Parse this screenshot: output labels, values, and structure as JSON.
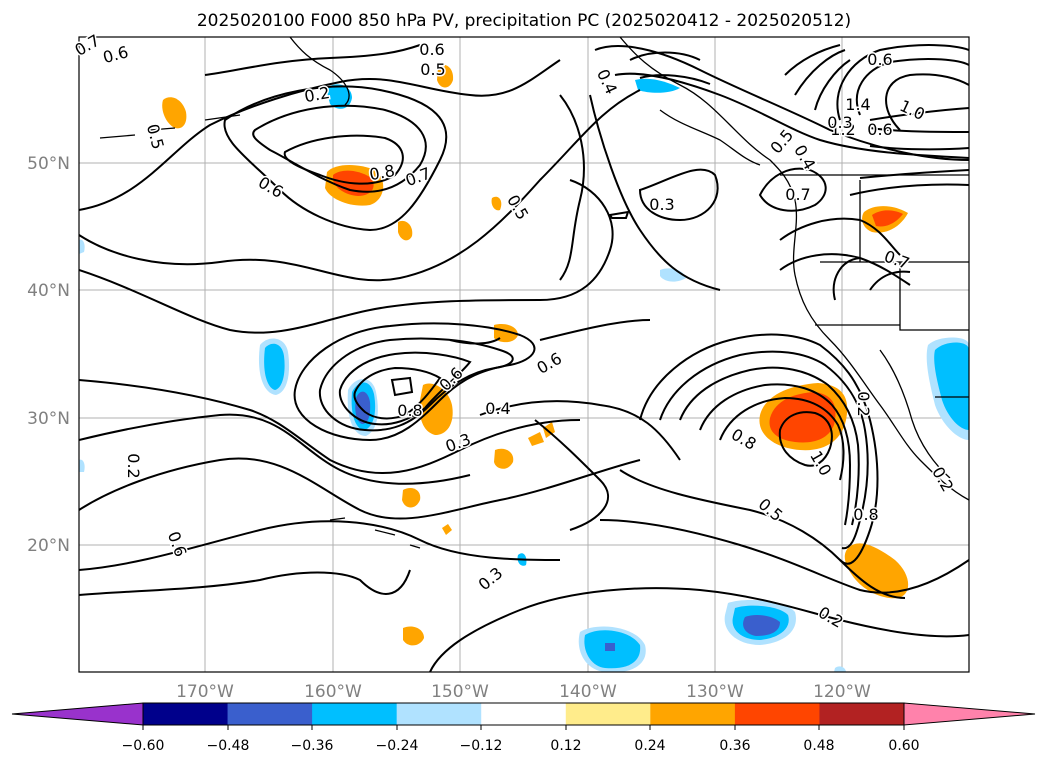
{
  "title": "2025020100 F000 850 hPa PV, precipitation PC (2025020412 - 2025020512)",
  "map": {
    "lat_labels": [
      "50°N",
      "40°N",
      "30°N",
      "20°N"
    ],
    "lon_labels": [
      "170°W",
      "160°W",
      "150°W",
      "140°W",
      "130°W",
      "120°W"
    ],
    "contour_labels": [
      "0.7",
      "0.6",
      "0.6",
      "0.5",
      "0.2",
      "0.5",
      "0.8",
      "0.7",
      "0.6",
      "0.5",
      "0.4",
      "0.3",
      "0.5",
      "0.6",
      "1.0",
      "1.4",
      "1.2",
      "0.6",
      "0.7",
      "0.3",
      "0.7",
      "0.6",
      "0.4",
      "0.8",
      "0.3",
      "0.6",
      "0.8",
      "0.2",
      "0.2",
      "0.3",
      "0.6",
      "0.5",
      "1.0",
      "0.8",
      "0.2",
      "0.2",
      "0.4"
    ]
  },
  "colorbar": {
    "ticks": [
      "−0.60",
      "−0.48",
      "−0.36",
      "−0.24",
      "−0.12",
      "0.12",
      "0.24",
      "0.36",
      "0.48",
      "0.60"
    ],
    "colors": [
      "#9932cc",
      "#00008b",
      "#3a5fcd",
      "#00bfff",
      "#b0e2ff",
      "#ffffff",
      "#ffec8b",
      "#ffa500",
      "#ff4500",
      "#b22222",
      "#ff82ab"
    ]
  }
}
